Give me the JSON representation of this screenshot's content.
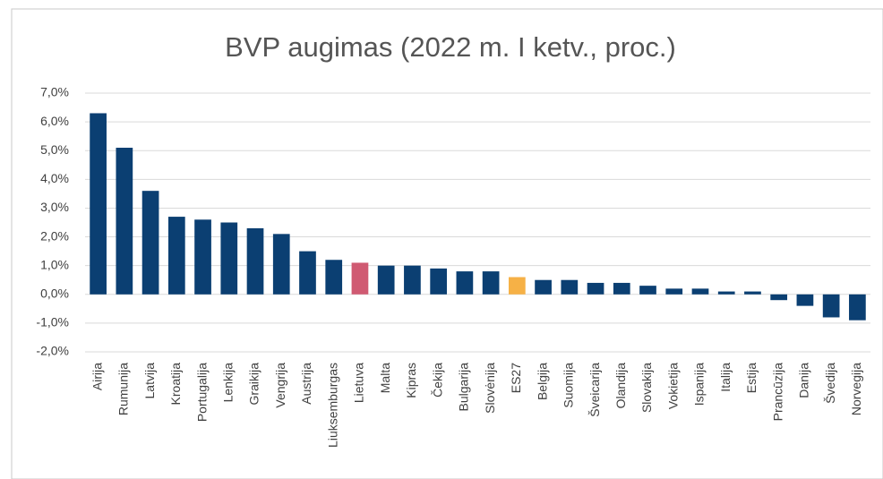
{
  "chart_data": {
    "type": "bar",
    "title": "BVP augimas (2022 m. I ketv., proc.)",
    "categories": [
      "Airija",
      "Rumunija",
      "Latvija",
      "Kroatija",
      "Portugalija",
      "Lenkija",
      "Graikija",
      "Vengrija",
      "Austrija",
      "Liuksemburgas",
      "Lietuva",
      "Malta",
      "Kipras",
      "Čekija",
      "Bulgarija",
      "Slovėnija",
      "ES27",
      "Belgija",
      "Suomija",
      "Šveicarija",
      "Olandija",
      "Slovakija",
      "Vokietija",
      "Ispanija",
      "Italija",
      "Estija",
      "Prancūzija",
      "Danija",
      "Švedija",
      "Norvegija"
    ],
    "values": [
      6.3,
      5.1,
      3.6,
      2.7,
      2.6,
      2.5,
      2.3,
      2.1,
      1.5,
      1.2,
      1.1,
      1.0,
      1.0,
      0.9,
      0.8,
      0.8,
      0.6,
      0.5,
      0.5,
      0.4,
      0.4,
      0.3,
      0.2,
      0.2,
      0.1,
      0.1,
      -0.2,
      -0.4,
      -0.8,
      -0.9
    ],
    "colors": [
      "#0b3f72",
      "#0b3f72",
      "#0b3f72",
      "#0b3f72",
      "#0b3f72",
      "#0b3f72",
      "#0b3f72",
      "#0b3f72",
      "#0b3f72",
      "#0b3f72",
      "#d05a72",
      "#0b3f72",
      "#0b3f72",
      "#0b3f72",
      "#0b3f72",
      "#0b3f72",
      "#f6b146",
      "#0b3f72",
      "#0b3f72",
      "#0b3f72",
      "#0b3f72",
      "#0b3f72",
      "#0b3f72",
      "#0b3f72",
      "#0b3f72",
      "#0b3f72",
      "#0b3f72",
      "#0b3f72",
      "#0b3f72",
      "#0b3f72"
    ],
    "ylim": [
      -2,
      7
    ],
    "yticks": [
      {
        "value": -2,
        "label": "-2,0%"
      },
      {
        "value": -1,
        "label": "-1,0%"
      },
      {
        "value": 0,
        "label": "0,0%"
      },
      {
        "value": 1,
        "label": "1,0%"
      },
      {
        "value": 2,
        "label": "2,0%"
      },
      {
        "value": 3,
        "label": "3,0%"
      },
      {
        "value": 4,
        "label": "4,0%"
      },
      {
        "value": 5,
        "label": "5,0%"
      },
      {
        "value": 6,
        "label": "6,0%"
      },
      {
        "value": 7,
        "label": "7,0%"
      }
    ],
    "grid": true
  }
}
